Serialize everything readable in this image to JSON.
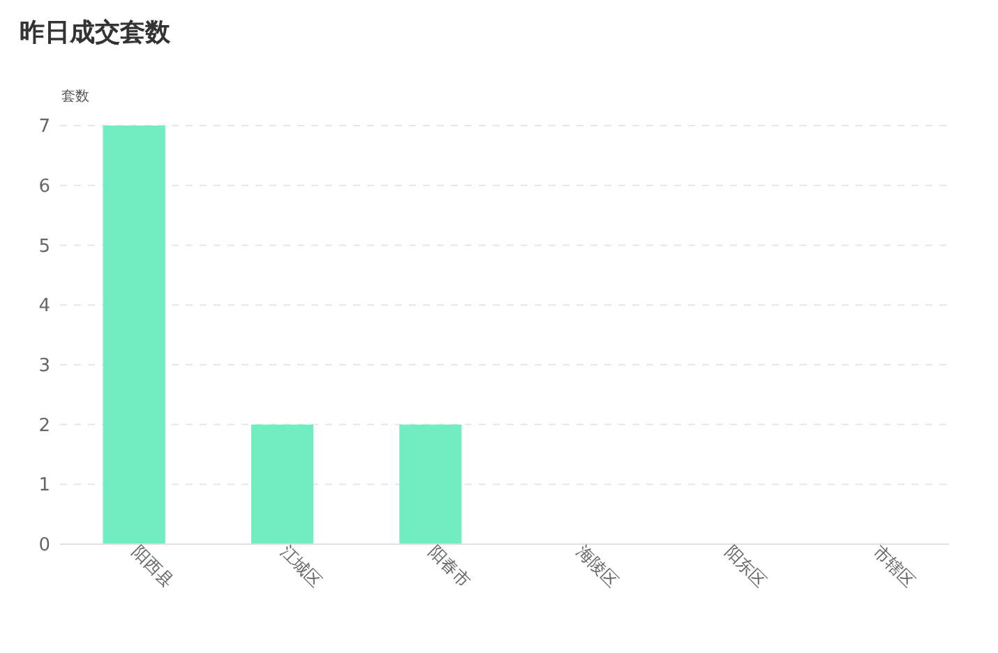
{
  "chart_data": {
    "type": "bar",
    "title": "昨日成交套数",
    "ylabel": "套数",
    "categories": [
      "阳西县",
      "江城区",
      "阳春市",
      "海陵区",
      "阳东区",
      "市辖区"
    ],
    "values": [
      7,
      2,
      2,
      0,
      0,
      0
    ],
    "color": "#72edbf",
    "ylim": [
      0,
      7
    ],
    "yticks": [
      0,
      1,
      2,
      3,
      4,
      5,
      6,
      7
    ],
    "grid": "y"
  }
}
